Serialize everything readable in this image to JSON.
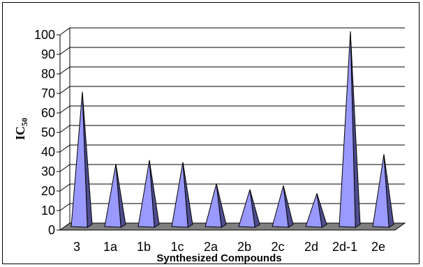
{
  "chart_data": {
    "type": "bar",
    "style": "3d-cone",
    "categories": [
      "3",
      "1a",
      "1b",
      "1c",
      "2a",
      "2b",
      "2c",
      "2d",
      "2d-1",
      "2e"
    ],
    "values": [
      69,
      32,
      34,
      33,
      22,
      19,
      21,
      17,
      100,
      37
    ],
    "xlabel": "Synthesized Compounds",
    "ylabel": "IC",
    "ylabel_subscript": "50",
    "ylim": [
      0,
      100
    ],
    "yticks": [
      "0",
      "10",
      "20",
      "30",
      "40",
      "50",
      "60",
      "70",
      "80",
      "90",
      "100"
    ],
    "grid": true,
    "bar_color": "#9999FF",
    "bar_shade_color": "#4D4D8F",
    "floor_color": "#7F7F7F"
  }
}
